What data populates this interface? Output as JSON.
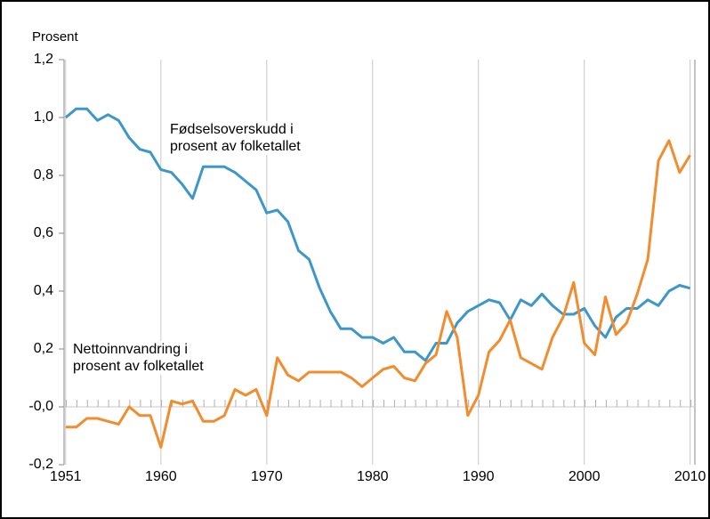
{
  "chart_data": {
    "type": "line",
    "ylabel": "Prosent",
    "x": [
      1951,
      1952,
      1953,
      1954,
      1955,
      1956,
      1957,
      1958,
      1959,
      1960,
      1961,
      1962,
      1963,
      1964,
      1965,
      1966,
      1967,
      1968,
      1969,
      1970,
      1971,
      1972,
      1973,
      1974,
      1975,
      1976,
      1977,
      1978,
      1979,
      1980,
      1981,
      1982,
      1983,
      1984,
      1985,
      1986,
      1987,
      1988,
      1989,
      1990,
      1991,
      1992,
      1993,
      1994,
      1995,
      1996,
      1997,
      1998,
      1999,
      2000,
      2001,
      2002,
      2003,
      2004,
      2005,
      2006,
      2007,
      2008,
      2009,
      2010
    ],
    "series": [
      {
        "name": "Fødselsoverskudd i\nprosent av folketallet",
        "color": "#3d97c9",
        "values": [
          1.0,
          1.03,
          1.03,
          0.99,
          1.01,
          0.99,
          0.93,
          0.89,
          0.88,
          0.82,
          0.81,
          0.77,
          0.72,
          0.83,
          0.83,
          0.83,
          0.81,
          0.78,
          0.75,
          0.67,
          0.68,
          0.64,
          0.54,
          0.51,
          0.41,
          0.33,
          0.27,
          0.27,
          0.24,
          0.24,
          0.22,
          0.24,
          0.19,
          0.19,
          0.16,
          0.22,
          0.22,
          0.29,
          0.33,
          0.35,
          0.37,
          0.36,
          0.3,
          0.37,
          0.35,
          0.39,
          0.35,
          0.32,
          0.32,
          0.34,
          0.28,
          0.24,
          0.31,
          0.34,
          0.34,
          0.37,
          0.35,
          0.4,
          0.42,
          0.41
        ]
      },
      {
        "name": "Nettoinnvandring i\nprosent av folketallet",
        "color": "#f28d2f",
        "values": [
          -0.07,
          -0.07,
          -0.04,
          -0.04,
          -0.05,
          -0.06,
          0.0,
          -0.03,
          -0.03,
          -0.14,
          0.02,
          0.01,
          0.02,
          -0.05,
          -0.05,
          -0.03,
          0.06,
          0.04,
          0.06,
          -0.03,
          0.17,
          0.11,
          0.09,
          0.12,
          0.12,
          0.12,
          0.12,
          0.1,
          0.07,
          0.1,
          0.13,
          0.14,
          0.1,
          0.09,
          0.15,
          0.18,
          0.33,
          0.24,
          -0.03,
          0.04,
          0.19,
          0.23,
          0.3,
          0.17,
          0.15,
          0.13,
          0.24,
          0.31,
          0.43,
          0.22,
          0.18,
          0.38,
          0.25,
          0.29,
          0.39,
          0.51,
          0.85,
          0.92,
          0.81,
          0.87
        ]
      }
    ],
    "xlim": [
      1950.85,
      2010.45
    ],
    "xticks": [
      1951,
      1960,
      1970,
      1980,
      1990,
      2000,
      2010
    ],
    "ylim": [
      -0.2,
      1.2
    ],
    "yticks": [
      {
        "value": -0.2,
        "label": "-0,2"
      },
      {
        "value": 0,
        "label": "-0,0"
      },
      {
        "value": 0.2,
        "label": "0,2"
      },
      {
        "value": 0.4,
        "label": "0,4"
      },
      {
        "value": 0.6,
        "label": "0,6"
      },
      {
        "value": 0.8,
        "label": "0,8"
      },
      {
        "value": 1.0,
        "label": "1,0"
      },
      {
        "value": 1.2,
        "label": "1,2"
      }
    ],
    "grid": true
  }
}
